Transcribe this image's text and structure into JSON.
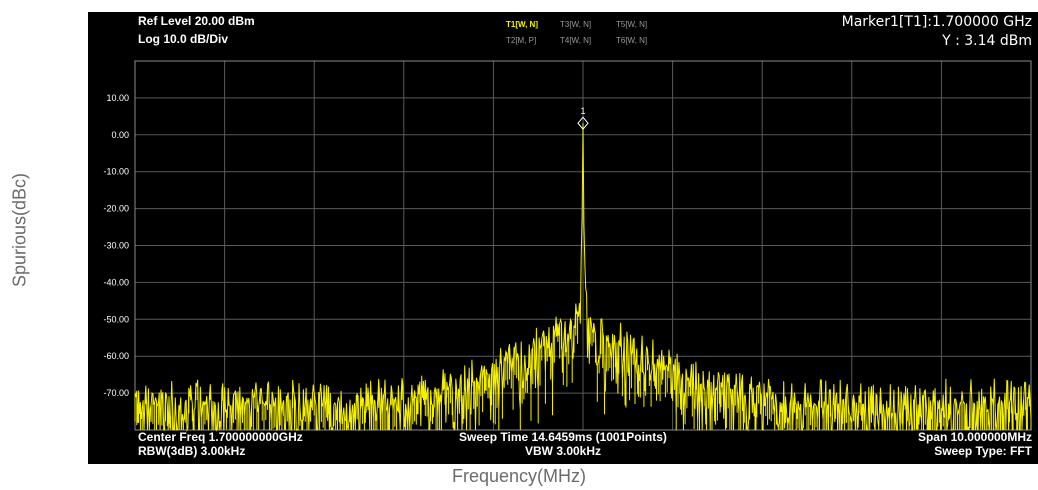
{
  "chart_data": {
    "type": "line",
    "xlabel": "Frequency(MHz)",
    "ylabel": "Spurious(dBc)",
    "ylim": [
      -80,
      20
    ],
    "ytick_values": [
      10,
      0,
      -10,
      -20,
      -30,
      -40,
      -50,
      -60,
      -70
    ],
    "ytick_labels": [
      "10.00",
      "0.00",
      "-10.00",
      "-20.00",
      "-30.00",
      "-40.00",
      "-50.00",
      "-60.00",
      "-70.00"
    ],
    "grid": true,
    "x_divisions": 10,
    "center_freq_ghz": 1.7,
    "span_mhz": 10,
    "points": 1001,
    "line_color": "#f5f000",
    "noise_floor_db": -73,
    "peak": {
      "x_mhz": 1700.0,
      "y_db": 3.14
    },
    "envelope": [
      {
        "offset_mhz": 0.0,
        "level_db": 3.14
      },
      {
        "offset_mhz": 0.01,
        "level_db": -24
      },
      {
        "offset_mhz": 0.03,
        "level_db": -45
      },
      {
        "offset_mhz": 0.1,
        "level_db": -52
      },
      {
        "offset_mhz": 0.4,
        "level_db": -57
      },
      {
        "offset_mhz": 0.8,
        "level_db": -62
      },
      {
        "offset_mhz": 1.2,
        "level_db": -67
      },
      {
        "offset_mhz": 1.8,
        "level_db": -71
      },
      {
        "offset_mhz": 2.5,
        "level_db": -73
      }
    ],
    "marker": {
      "label": "1"
    }
  },
  "header": {
    "ref_level": "Ref Level 20.00 dBm",
    "scale": "Log 10.0 dB/Div",
    "marker_readout": "Marker1[T1]:1.700000 GHz",
    "y_readout": "Y : 3.14 dBm",
    "traces_row1": [
      "T1[W, N]",
      "T3[W, N]",
      "T5[W, N]"
    ],
    "traces_row2": [
      "T2[M, P]",
      "T4[W, N]",
      "T6[W, N]"
    ]
  },
  "footer": {
    "center_freq": "Center Freq 1.700000000GHz",
    "rbw": "RBW(3dB) 3.00kHz",
    "sweep_time": "Sweep Time 14.6459ms (1001Points)",
    "vbw": "VBW 3.00kHz",
    "span": "Span 10.000000MHz",
    "sweep_type": "Sweep Type: FFT"
  },
  "colors": {
    "screen_bg": "#000000",
    "grid": "#5a5a5a",
    "trace": "#f5f000",
    "active_trace_label": "#f5f000",
    "inactive_trace_label": "#9a9a9a"
  }
}
